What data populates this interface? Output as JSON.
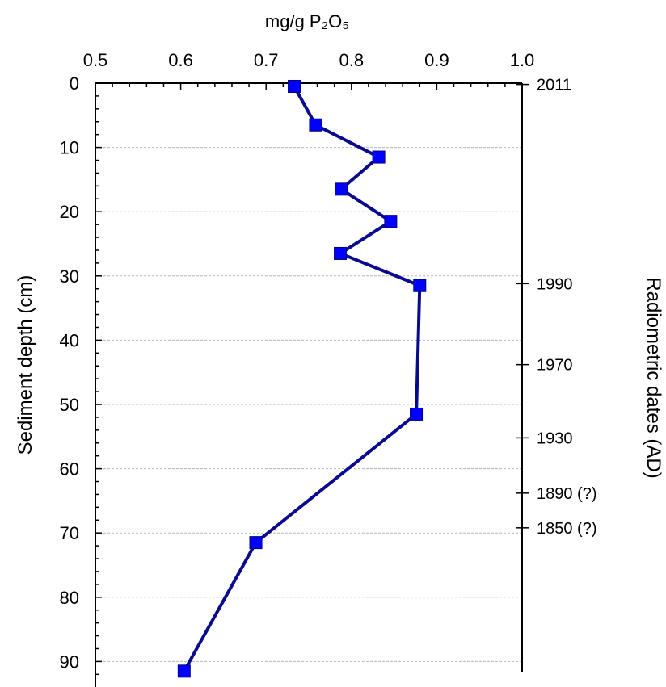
{
  "chart_data": {
    "type": "line",
    "title": "mg/g P₂O₅",
    "ylabel": "Sediment depth (cm)",
    "y2label": "Radiometric dates (AD)",
    "x_axis_position": "top",
    "xlim": [
      0.5,
      1.0
    ],
    "ylim": [
      0,
      93
    ],
    "y_inverted": true,
    "x_ticks": [
      "0.5",
      "0.6",
      "0.7",
      "0.8",
      "0.9",
      "1.0"
    ],
    "y_ticks": [
      "0",
      "10",
      "20",
      "30",
      "40",
      "50",
      "60",
      "70",
      "80",
      "90"
    ],
    "grid": "horizontal dashed",
    "series": [
      {
        "color": "#0000ff",
        "line_color": "#0a0a8c",
        "marker": "square",
        "points": [
          {
            "x": 0.733,
            "y": 0.5
          },
          {
            "x": 0.758,
            "y": 6.5
          },
          {
            "x": 0.832,
            "y": 11.5
          },
          {
            "x": 0.788,
            "y": 16.5
          },
          {
            "x": 0.846,
            "y": 21.5
          },
          {
            "x": 0.787,
            "y": 26.5
          },
          {
            "x": 0.88,
            "y": 31.5
          },
          {
            "x": 0.876,
            "y": 51.5
          },
          {
            "x": 0.688,
            "y": 71.5
          },
          {
            "x": 0.604,
            "y": 91.5
          }
        ]
      }
    ],
    "date_ticks": [
      {
        "depth": 0.2,
        "label": "2011"
      },
      {
        "depth": 31.2,
        "label": "1990"
      },
      {
        "depth": 43.8,
        "label": "1970"
      },
      {
        "depth": 55.2,
        "label": "1930"
      },
      {
        "depth": 63.8,
        "label": "1890 (?)"
      },
      {
        "depth": 69.2,
        "label": "1850 (?)"
      }
    ]
  }
}
